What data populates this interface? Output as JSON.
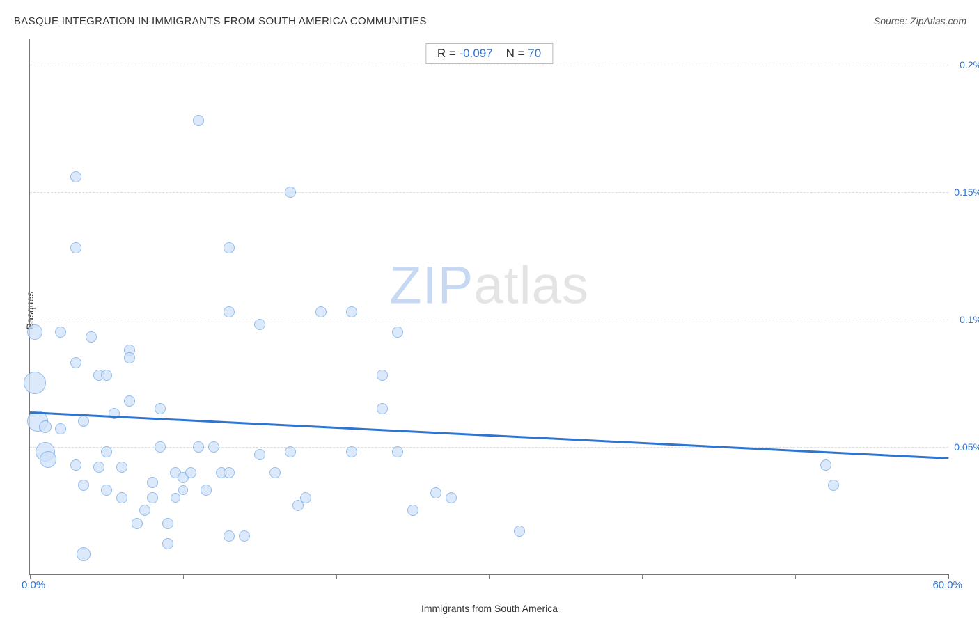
{
  "title": "BASQUE INTEGRATION IN IMMIGRANTS FROM SOUTH AMERICA COMMUNITIES",
  "source": "Source: ZipAtlas.com",
  "watermark_zip": "ZIP",
  "watermark_atlas": "atlas",
  "stats": {
    "r_label": "R = ",
    "r_value": "-0.097",
    "n_label": "N = ",
    "n_value": "70"
  },
  "chart": {
    "type": "scatter",
    "x_label": "Immigrants from South America",
    "y_label": "Basques",
    "x_min_label": "0.0%",
    "x_max_label": "60.0%",
    "xlim": [
      0,
      60
    ],
    "ylim": [
      0,
      0.21
    ],
    "y_ticks": [
      {
        "v": 0.05,
        "label": "0.05%"
      },
      {
        "v": 0.1,
        "label": "0.1%"
      },
      {
        "v": 0.15,
        "label": "0.15%"
      },
      {
        "v": 0.2,
        "label": "0.2%"
      }
    ],
    "x_tick_positions": [
      0,
      10,
      20,
      30,
      40,
      50,
      60
    ],
    "background_color": "#ffffff",
    "grid_color": "#dddddd",
    "axis_color": "#777777",
    "point_fill": "#cfe2f9",
    "point_stroke": "#6fa8e8",
    "point_fill_opacity": 0.75,
    "trend_color": "#2f74d0",
    "trend_width": 2.5,
    "accent_color": "#2f74d0",
    "trend_line": {
      "x1": 0,
      "y1": 0.064,
      "x2": 60,
      "y2": 0.046
    },
    "points": [
      {
        "x": 0.3,
        "y": 0.095,
        "r": 11
      },
      {
        "x": 0.3,
        "y": 0.075,
        "r": 16
      },
      {
        "x": 0.5,
        "y": 0.06,
        "r": 15
      },
      {
        "x": 1.0,
        "y": 0.048,
        "r": 14
      },
      {
        "x": 1.2,
        "y": 0.045,
        "r": 12
      },
      {
        "x": 1.0,
        "y": 0.058,
        "r": 9
      },
      {
        "x": 2.0,
        "y": 0.095,
        "r": 8
      },
      {
        "x": 3.0,
        "y": 0.156,
        "r": 8
      },
      {
        "x": 3.0,
        "y": 0.128,
        "r": 8
      },
      {
        "x": 2.0,
        "y": 0.057,
        "r": 8
      },
      {
        "x": 3.0,
        "y": 0.083,
        "r": 8
      },
      {
        "x": 3.0,
        "y": 0.043,
        "r": 8
      },
      {
        "x": 3.5,
        "y": 0.008,
        "r": 10
      },
      {
        "x": 3.5,
        "y": 0.035,
        "r": 8
      },
      {
        "x": 3.5,
        "y": 0.06,
        "r": 8
      },
      {
        "x": 4.0,
        "y": 0.093,
        "r": 8
      },
      {
        "x": 4.5,
        "y": 0.042,
        "r": 8
      },
      {
        "x": 4.5,
        "y": 0.078,
        "r": 8
      },
      {
        "x": 5.0,
        "y": 0.078,
        "r": 8
      },
      {
        "x": 5.0,
        "y": 0.033,
        "r": 8
      },
      {
        "x": 5.0,
        "y": 0.048,
        "r": 8
      },
      {
        "x": 5.5,
        "y": 0.063,
        "r": 8
      },
      {
        "x": 6.0,
        "y": 0.042,
        "r": 8
      },
      {
        "x": 6.0,
        "y": 0.03,
        "r": 8
      },
      {
        "x": 6.5,
        "y": 0.088,
        "r": 8
      },
      {
        "x": 6.5,
        "y": 0.085,
        "r": 8
      },
      {
        "x": 6.5,
        "y": 0.068,
        "r": 8
      },
      {
        "x": 7.0,
        "y": 0.02,
        "r": 8
      },
      {
        "x": 7.5,
        "y": 0.025,
        "r": 8
      },
      {
        "x": 8.0,
        "y": 0.036,
        "r": 8
      },
      {
        "x": 8.0,
        "y": 0.03,
        "r": 8
      },
      {
        "x": 8.5,
        "y": 0.05,
        "r": 8
      },
      {
        "x": 8.5,
        "y": 0.065,
        "r": 8
      },
      {
        "x": 9.0,
        "y": 0.02,
        "r": 8
      },
      {
        "x": 9.0,
        "y": 0.012,
        "r": 8
      },
      {
        "x": 9.5,
        "y": 0.04,
        "r": 8
      },
      {
        "x": 9.5,
        "y": 0.03,
        "r": 7
      },
      {
        "x": 10.0,
        "y": 0.038,
        "r": 8
      },
      {
        "x": 10.0,
        "y": 0.033,
        "r": 7
      },
      {
        "x": 10.5,
        "y": 0.04,
        "r": 8
      },
      {
        "x": 11.0,
        "y": 0.178,
        "r": 8
      },
      {
        "x": 11.0,
        "y": 0.05,
        "r": 8
      },
      {
        "x": 11.5,
        "y": 0.033,
        "r": 8
      },
      {
        "x": 12.0,
        "y": 0.05,
        "r": 8
      },
      {
        "x": 12.5,
        "y": 0.04,
        "r": 8
      },
      {
        "x": 13.0,
        "y": 0.128,
        "r": 8
      },
      {
        "x": 13.0,
        "y": 0.103,
        "r": 8
      },
      {
        "x": 13.0,
        "y": 0.04,
        "r": 8
      },
      {
        "x": 13.0,
        "y": 0.015,
        "r": 8
      },
      {
        "x": 14.0,
        "y": 0.015,
        "r": 8
      },
      {
        "x": 15.0,
        "y": 0.098,
        "r": 8
      },
      {
        "x": 15.0,
        "y": 0.047,
        "r": 8
      },
      {
        "x": 16.0,
        "y": 0.04,
        "r": 8
      },
      {
        "x": 17.0,
        "y": 0.15,
        "r": 8
      },
      {
        "x": 17.0,
        "y": 0.048,
        "r": 8
      },
      {
        "x": 17.5,
        "y": 0.027,
        "r": 8
      },
      {
        "x": 18.0,
        "y": 0.03,
        "r": 8
      },
      {
        "x": 19.0,
        "y": 0.103,
        "r": 8
      },
      {
        "x": 21.0,
        "y": 0.103,
        "r": 8
      },
      {
        "x": 21.0,
        "y": 0.048,
        "r": 8
      },
      {
        "x": 23.0,
        "y": 0.065,
        "r": 8
      },
      {
        "x": 23.0,
        "y": 0.078,
        "r": 8
      },
      {
        "x": 24.0,
        "y": 0.048,
        "r": 8
      },
      {
        "x": 24.0,
        "y": 0.095,
        "r": 8
      },
      {
        "x": 25.0,
        "y": 0.025,
        "r": 8
      },
      {
        "x": 26.5,
        "y": 0.032,
        "r": 8
      },
      {
        "x": 27.5,
        "y": 0.03,
        "r": 8
      },
      {
        "x": 32.0,
        "y": 0.017,
        "r": 8
      },
      {
        "x": 52.0,
        "y": 0.043,
        "r": 8
      },
      {
        "x": 52.5,
        "y": 0.035,
        "r": 8
      }
    ]
  }
}
